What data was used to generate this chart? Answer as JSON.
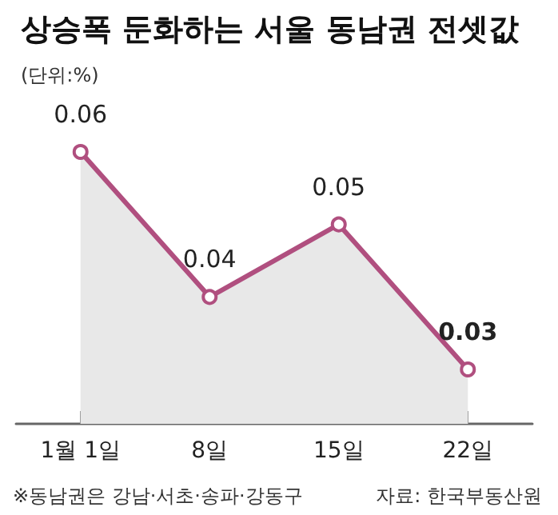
{
  "chart_data": {
    "type": "area",
    "title": "상승폭 둔화하는 서울 동남권 전셋값",
    "subtitle": "(단위:%)",
    "categories": [
      "1월 1일",
      "8일",
      "15일",
      "22일"
    ],
    "series": [
      {
        "color": "#b04f7f",
        "values": [
          0.06,
          0.04,
          0.05,
          0.03
        ]
      }
    ],
    "data_labels": true,
    "marker": "circle",
    "annotations": [
      "※동남권은 강남·서초·송파·강동구",
      "자료: 한국부동산원"
    ]
  }
}
